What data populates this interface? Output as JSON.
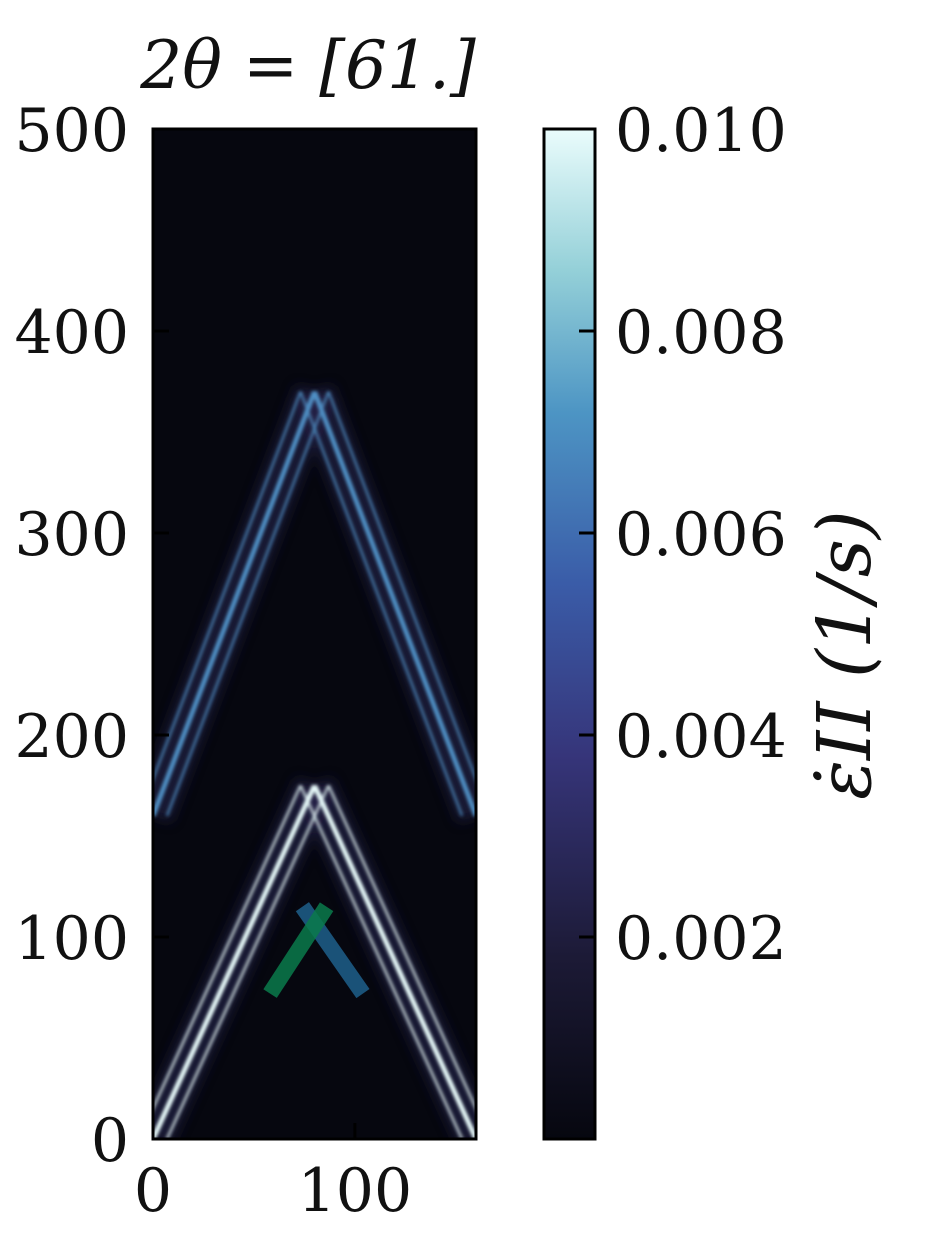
{
  "chart_data": [
    {
      "type": "heatmap",
      "title": "2θ = [61.]",
      "xlabel": "",
      "ylabel": "",
      "xlim": [
        0,
        160
      ],
      "ylim": [
        0,
        500
      ],
      "x_ticks": [
        0,
        100
      ],
      "y_ticks": [
        0,
        100,
        200,
        300,
        400,
        500
      ],
      "x_tick_labels": [
        "0",
        "100"
      ],
      "y_tick_labels": [
        "0",
        "100",
        "200",
        "300",
        "400",
        "500"
      ],
      "colormap_colors": [
        "#06070f",
        "#2a2753",
        "#3a4fa0",
        "#4f8fc4",
        "#8fcdd6",
        "#e8fbfb"
      ],
      "features": [
        {
          "kind": "ridge",
          "x0": 0,
          "y0": 0,
          "x1": 80,
          "y1": 175,
          "intensity": 0.01
        },
        {
          "kind": "ridge",
          "x0": 160,
          "y0": 0,
          "x1": 80,
          "y1": 175,
          "intensity": 0.01
        },
        {
          "kind": "ridge",
          "x0": 0,
          "y0": 160,
          "x1": 80,
          "y1": 370,
          "intensity": 0.006
        },
        {
          "kind": "ridge",
          "x0": 160,
          "y0": 160,
          "x1": 80,
          "y1": 370,
          "intensity": 0.006
        }
      ],
      "overlay_lines": [
        {
          "name": "",
          "color": "#1f5f8b",
          "points": [
            [
              74,
              115
            ],
            [
              104,
              72
            ]
          ]
        },
        {
          "name": "",
          "color": "#0b7a4b",
          "points": [
            [
              58,
              72
            ],
            [
              86,
              115
            ]
          ]
        }
      ]
    },
    {
      "type": "colorbar",
      "label": "ε̇II (1/s)",
      "range": [
        0,
        0.01
      ],
      "ticks": [
        0.002,
        0.004,
        0.006,
        0.008,
        0.01
      ],
      "tick_labels": [
        "0.002",
        "0.004",
        "0.006",
        "0.008",
        "0.010"
      ]
    }
  ]
}
